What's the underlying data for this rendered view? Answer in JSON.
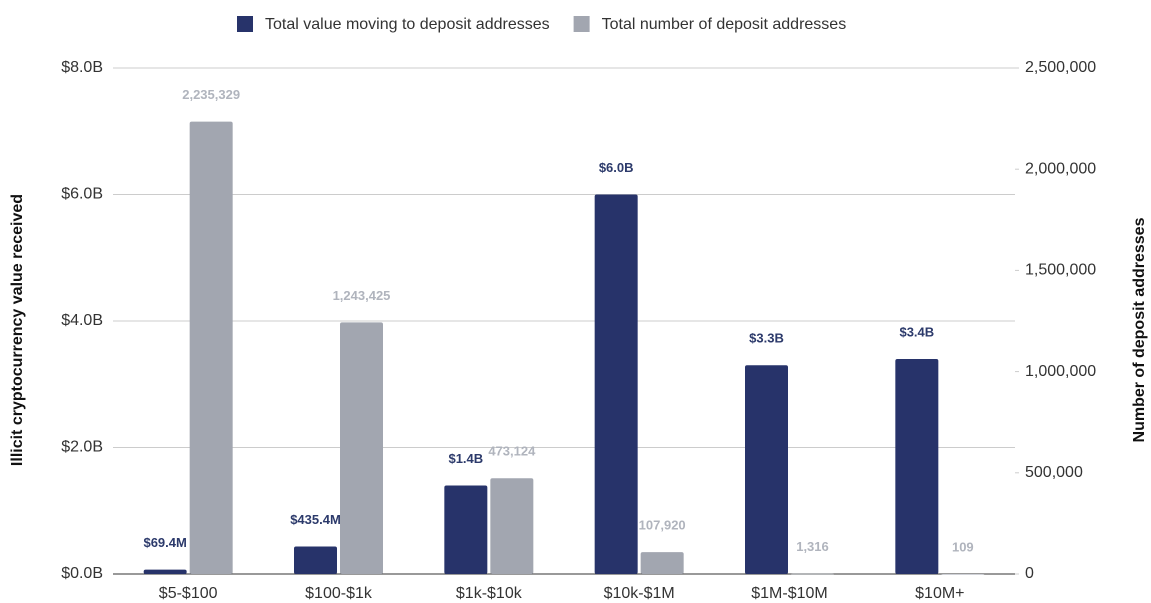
{
  "chart_data": {
    "type": "bar",
    "categories": [
      "$5-$100",
      "$100-$1k",
      "$1k-$10k",
      "$10k-$1M",
      "$1M-$10M",
      "$10M+"
    ],
    "series": [
      {
        "name": "Total value moving to deposit addresses",
        "color": "#27336a",
        "axis": "y",
        "values": [
          69400000,
          435400000,
          1400000000,
          6000000000,
          3300000000,
          3400000000
        ],
        "value_labels": [
          "$69.4M",
          "$435.4M",
          "$1.4B",
          "$6.0B",
          "$3.3B",
          "$3.4B"
        ]
      },
      {
        "name": "Total number of deposit addresses",
        "color": "#a2a6b0",
        "axis": "y2",
        "values": [
          2235329,
          1243425,
          473124,
          107920,
          1316,
          109
        ],
        "value_labels": [
          "2,235,329",
          "1,243,425",
          "473,124",
          "107,920",
          "1,316",
          "109"
        ]
      }
    ],
    "ylabel": "Illicit cryptocurrency value received",
    "y2label": "Number of deposit addresses",
    "ylim": [
      0,
      8000000000
    ],
    "yticks": [
      {
        "value": 0,
        "label": "$0.0B"
      },
      {
        "value": 2000000000,
        "label": "$2.0B"
      },
      {
        "value": 4000000000,
        "label": "$4.0B"
      },
      {
        "value": 6000000000,
        "label": "$6.0B"
      },
      {
        "value": 8000000000,
        "label": "$8.0B"
      }
    ],
    "y2lim": [
      0,
      2500000
    ],
    "y2ticks": [
      0,
      {
        "value": 500000,
        "label": "500,000"
      },
      {
        "value": 1000000,
        "label": "1,000,000"
      },
      {
        "value": 1500000,
        "label": "1,500,000"
      },
      {
        "value": 2000000,
        "label": "2,000,000"
      },
      {
        "value": 2500000,
        "label": "2,500,000"
      }
    ],
    "grid": true,
    "legend": "top"
  }
}
